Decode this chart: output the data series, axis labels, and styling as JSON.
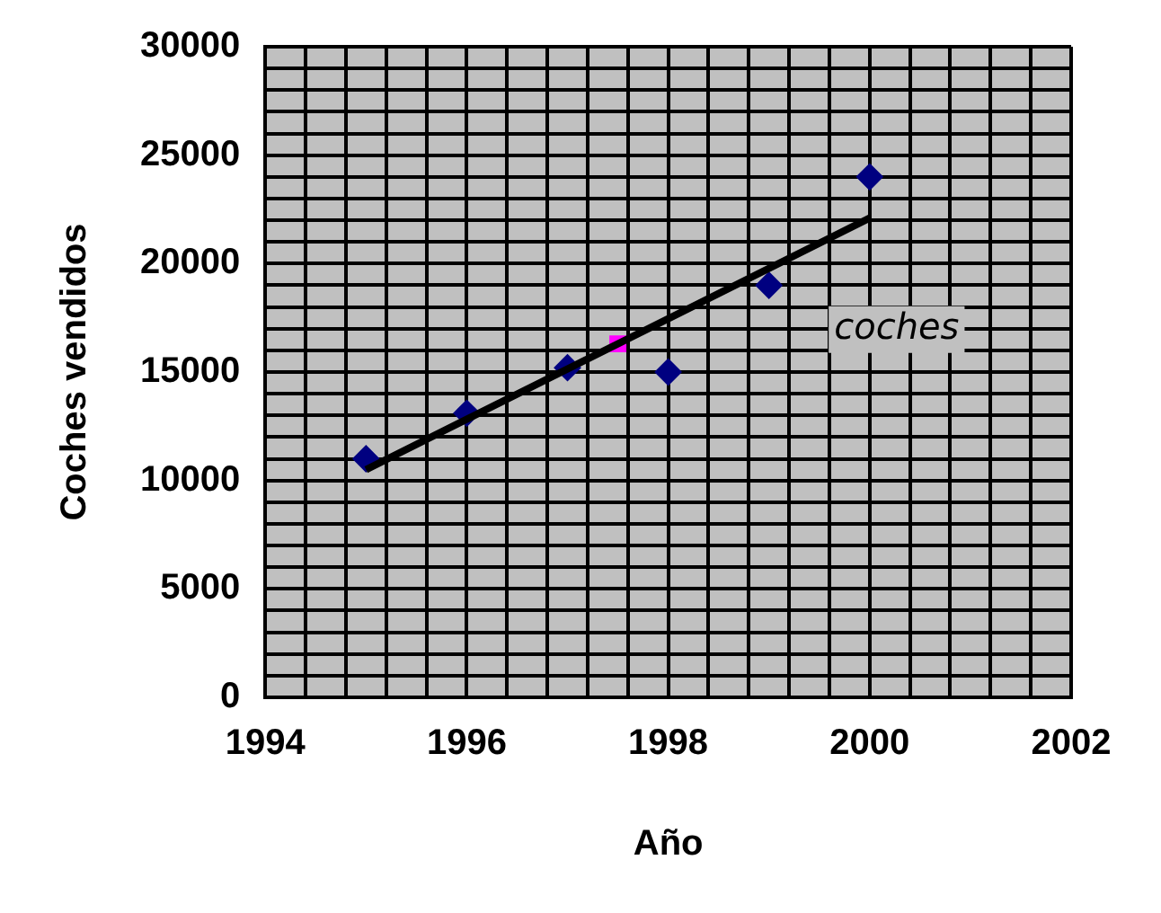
{
  "chart_data": {
    "type": "scatter",
    "xlabel": "Año",
    "ylabel": "Coches vendidos",
    "xlim": [
      1994,
      2002
    ],
    "ylim": [
      0,
      30000
    ],
    "xticks": [
      1994,
      {
        "value": 1994.4,
        "label": null
      },
      {
        "value": 1994.8,
        "label": null
      },
      {
        "value": 1995.2,
        "label": null
      },
      {
        "value": 1995.6,
        "label": null
      },
      1996,
      {
        "value": 1996.4,
        "label": null
      },
      {
        "value": 1996.8,
        "label": null
      },
      {
        "value": 1997.2,
        "label": null
      },
      {
        "value": 1997.6,
        "label": null
      },
      1998,
      {
        "value": 1998.4,
        "label": null
      },
      {
        "value": 1998.8,
        "label": null
      },
      {
        "value": 1999.2,
        "label": null
      },
      {
        "value": 1999.6,
        "label": null
      },
      2000,
      {
        "value": 2000.4,
        "label": null
      },
      {
        "value": 2000.8,
        "label": null
      },
      {
        "value": 2001.2,
        "label": null
      },
      {
        "value": 2001.6,
        "label": null
      },
      2002
    ],
    "yticks": [
      0,
      {
        "value": 1000,
        "label": null
      },
      {
        "value": 2000,
        "label": null
      },
      {
        "value": 3000,
        "label": null
      },
      {
        "value": 4000,
        "label": null
      },
      5000,
      {
        "value": 6000,
        "label": null
      },
      {
        "value": 7000,
        "label": null
      },
      {
        "value": 8000,
        "label": null
      },
      {
        "value": 9000,
        "label": null
      },
      10000,
      {
        "value": 11000,
        "label": null
      },
      {
        "value": 12000,
        "label": null
      },
      {
        "value": 13000,
        "label": null
      },
      {
        "value": 14000,
        "label": null
      },
      15000,
      {
        "value": 16000,
        "label": null
      },
      {
        "value": 17000,
        "label": null
      },
      {
        "value": 18000,
        "label": null
      },
      {
        "value": 19000,
        "label": null
      },
      20000,
      {
        "value": 21000,
        "label": null
      },
      {
        "value": 22000,
        "label": null
      },
      {
        "value": 23000,
        "label": null
      },
      {
        "value": 24000,
        "label": null
      },
      25000,
      {
        "value": 26000,
        "label": null
      },
      {
        "value": 27000,
        "label": null
      },
      {
        "value": 28000,
        "label": null
      },
      {
        "value": 29000,
        "label": null
      },
      30000
    ],
    "grid": true,
    "marker": "diamond",
    "legend": false,
    "series": [
      {
        "color": "#000080",
        "x": [
          1995,
          1996,
          1997,
          1998,
          1999,
          2000
        ],
        "values": [
          11000,
          13100,
          15200,
          15000,
          19000,
          24000
        ]
      },
      {
        "color": "#ff00ff",
        "marker": "square",
        "x": [
          1997.5
        ],
        "values": [
          16300
        ]
      },
      {
        "type": "line",
        "name": "coches",
        "color": "#000000",
        "marker": "none",
        "x": [
          1995,
          2000
        ],
        "values": [
          10500,
          22100
        ]
      }
    ]
  }
}
